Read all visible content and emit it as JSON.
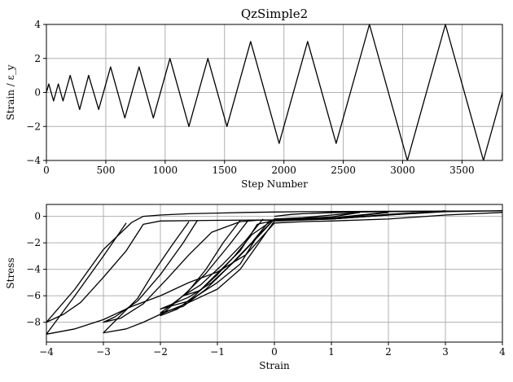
{
  "chart_data": [
    {
      "type": "line",
      "title": "QzSimple2",
      "xlabel": "Step Number",
      "ylabel": "Strain / ε_y",
      "xlim": [
        0,
        3840
      ],
      "ylim": [
        -4,
        4
      ],
      "xticks": [
        0,
        500,
        1000,
        1500,
        2000,
        2500,
        3000,
        3500
      ],
      "yticks": [
        -4,
        -2,
        0,
        2,
        4
      ],
      "ytick_labels": [
        "−4",
        "−2",
        "0",
        "2",
        "4"
      ],
      "grid": true,
      "series": [
        {
          "x": [
            0,
            20,
            60,
            100,
            140,
            200,
            280,
            355,
            440,
            540,
            660,
            780,
            900,
            1040,
            1200,
            1360,
            1520,
            1720,
            1960,
            2200,
            2440,
            2720,
            3040,
            3360,
            3680,
            3840
          ],
          "y": [
            0,
            0.5,
            -0.5,
            0.5,
            -0.5,
            1,
            -1,
            1,
            -1,
            1.5,
            -1.5,
            1.5,
            -1.5,
            2,
            -2,
            2,
            -2,
            3,
            -3,
            3,
            -3,
            4,
            -4,
            4,
            -4,
            0
          ]
        }
      ]
    },
    {
      "type": "line",
      "title": "",
      "xlabel": "Strain",
      "ylabel": "Stress",
      "xlim": [
        -4,
        4
      ],
      "ylim": [
        -9.5,
        0.9
      ],
      "xticks": [
        -4,
        -3,
        -2,
        -1,
        0,
        1,
        2,
        3,
        4
      ],
      "xtick_labels": [
        "−4",
        "−3",
        "−2",
        "−1",
        "0",
        "1",
        "2",
        "3",
        "4"
      ],
      "yticks": [
        -8,
        -6,
        -4,
        -2,
        0
      ],
      "ytick_labels": [
        "−8",
        "−6",
        "−4",
        "−2",
        "0"
      ],
      "grid": true,
      "series": [
        {
          "name": "",
          "x": [
            0,
            0.3,
            0.5,
            1,
            1.5,
            2,
            3,
            4,
            3.5,
            3,
            2,
            1,
            0.5,
            0,
            -0.5,
            -1,
            -1.5,
            -2,
            -2.3,
            -2.5,
            -3,
            -3.5,
            -4,
            -3.7,
            -3.4,
            -3,
            -2.6,
            -2.3,
            -2,
            -1,
            0,
            1,
            2,
            3,
            4
          ],
          "y": [
            0,
            0.15,
            0.2,
            0.28,
            0.33,
            0.36,
            0.39,
            0.42,
            0.41,
            0.4,
            0.38,
            0.36,
            0.35,
            0.33,
            0.3,
            0.25,
            0.2,
            0.1,
            0,
            -0.45,
            -2.5,
            -5.5,
            -8.0,
            -7.4,
            -6.5,
            -4.6,
            -2.6,
            -0.6,
            -0.35,
            -0.3,
            -0.27,
            -0.2,
            0.1,
            0.35,
            0.42
          ]
        },
        {
          "name": "",
          "x": [
            -2.6,
            -3,
            -3.5,
            -4,
            -3.5,
            -3,
            -2.5,
            -2,
            -1.5,
            -1,
            -0.5,
            0,
            0.5,
            1,
            2,
            3,
            4
          ],
          "y": [
            -0.5,
            -3.0,
            -6.0,
            -8.9,
            -8.5,
            -7.8,
            -6.8,
            -6.0,
            -5.0,
            -4.2,
            -2.9,
            -0.5,
            -0.4,
            -0.35,
            -0.2,
            0.1,
            0.3
          ]
        },
        {
          "name": "",
          "x": [
            -1.5,
            -1.8,
            -2.1,
            -2.4,
            -3,
            -2.6,
            -2.3,
            -2,
            -1.5,
            -1,
            -0.6,
            0,
            1,
            2,
            3
          ],
          "y": [
            -0.4,
            -2.2,
            -4.1,
            -6.2,
            -8.8,
            -8.5,
            -8.0,
            -7.4,
            -6.5,
            -5.5,
            -4.0,
            -0.35,
            -0.2,
            0.1,
            0.42
          ]
        },
        {
          "name": "",
          "x": [
            -1.35,
            -1.6,
            -2,
            -2.4,
            -2.8,
            -3,
            -2.7,
            -2.3,
            -1.9,
            -1.5,
            -1.1,
            -0.6,
            -0.3,
            0,
            1,
            2,
            3
          ],
          "y": [
            -0.3,
            -2.0,
            -4.4,
            -6.4,
            -7.6,
            -8.0,
            -7.7,
            -6.6,
            -4.8,
            -2.9,
            -1.2,
            -0.4,
            -0.3,
            -0.28,
            -0.2,
            0.15,
            0.4
          ]
        },
        {
          "name": "",
          "x": [
            -0.6,
            -0.9,
            -1.2,
            -1.5,
            -2,
            -1.7,
            -1.4,
            -1,
            -0.6,
            -0.3,
            0,
            1,
            2
          ],
          "y": [
            -0.3,
            -2.0,
            -4.0,
            -5.6,
            -7.5,
            -7.0,
            -6.0,
            -4.3,
            -2.6,
            -0.6,
            -0.3,
            -0.18,
            0.3
          ]
        },
        {
          "name": "",
          "x": [
            -0.45,
            -0.8,
            -1.2,
            -1.6,
            -2,
            -1.6,
            -1.2,
            -0.8,
            -0.4,
            -0.1,
            0,
            1,
            2
          ],
          "y": [
            -0.25,
            -2.2,
            -4.3,
            -6.0,
            -7.3,
            -6.8,
            -5.5,
            -3.8,
            -2.0,
            -0.4,
            -0.25,
            -0.12,
            0.32
          ]
        },
        {
          "name": "",
          "x": [
            0,
            -0.3,
            -0.7,
            -1.1,
            -1.5,
            -2,
            -1.5,
            -1,
            -0.6,
            -0.3,
            0,
            0.5,
            1,
            1.5
          ],
          "y": [
            -0.2,
            -1.6,
            -3.4,
            -5.0,
            -6.1,
            -7.0,
            -6.4,
            -5.0,
            -3.6,
            -1.5,
            -0.2,
            -0.15,
            -0.05,
            0.3
          ]
        },
        {
          "name": "",
          "x": [
            -0.2,
            -0.5,
            -0.9,
            -1.3,
            -1.6,
            -1.3,
            -1,
            -0.7,
            -0.4,
            0,
            0.5,
            1,
            1.5
          ],
          "y": [
            -0.2,
            -1.8,
            -3.6,
            -5.2,
            -6.0,
            -5.6,
            -4.4,
            -3.0,
            -1.4,
            -0.2,
            -0.1,
            0.1,
            0.3
          ]
        }
      ]
    }
  ]
}
